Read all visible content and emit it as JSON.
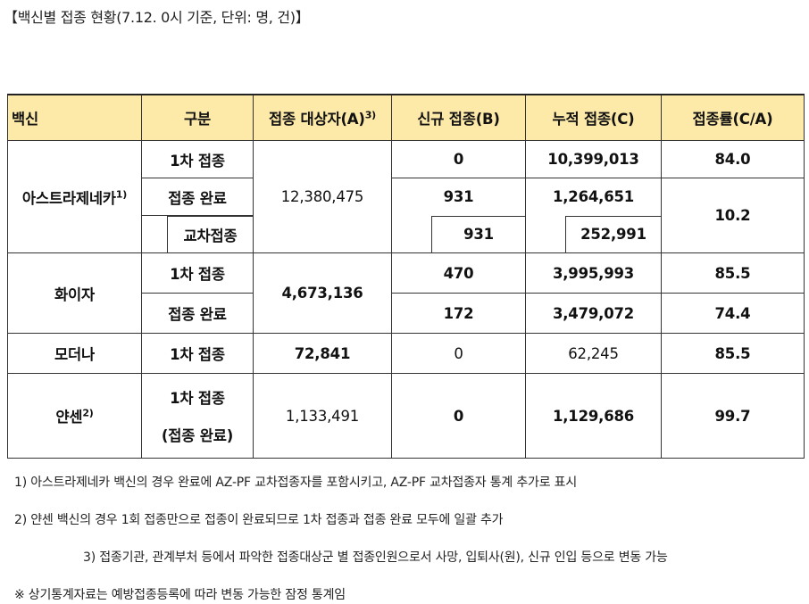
{
  "title": "【백신별 접종 현황(7.12. 0시 기준, 단위: 명, 건)】",
  "headers": {
    "vaccine": "백신",
    "category": "구분",
    "target": "접종 대상자(A)",
    "target_sup": "3)",
    "new": "신규 접종(B)",
    "cumulative": "누적 접종(C)",
    "rate": "접종률(C/A)"
  },
  "rows": {
    "az": {
      "name": "아스트라제네카",
      "name_sup": "1)",
      "target": "12,380,475",
      "first": {
        "label": "1차 접종",
        "new": "0",
        "cum": "10,399,013",
        "rate": "84.0"
      },
      "complete": {
        "label": "접종 완료",
        "new": "931",
        "cum": "1,264,651",
        "rate": "10.2"
      },
      "cross": {
        "label": "교차접종",
        "new": "931",
        "cum": "252,991"
      }
    },
    "pfizer": {
      "name": "화이자",
      "target": "4,673,136",
      "first": {
        "label": "1차 접종",
        "new": "470",
        "cum": "3,995,993",
        "rate": "85.5"
      },
      "complete": {
        "label": "접종 완료",
        "new": "172",
        "cum": "3,479,072",
        "rate": "74.4"
      }
    },
    "moderna": {
      "name": "모더나",
      "label": "1차 접종",
      "target": "72,841",
      "new": "0",
      "cum": "62,245",
      "rate": "85.5"
    },
    "janssen": {
      "name": "얀센",
      "name_sup": "2)",
      "label1": "1차 접종",
      "label2": "(접종 완료)",
      "target": "1,133,491",
      "new": "0",
      "cum": "1,129,686",
      "rate": "99.7"
    }
  },
  "notes": {
    "n1": "1)  아스트라제네카 백신의 경우 완료에 AZ-PF  교차접종자를 포함시키고,  AZ-PF  교차접종자 통계 추가로 표시",
    "n2": "2)  얀센 백신의 경우 1회 접종만으로 접종이 완료되므로 1차 접종과 접종 완료 모두에 일괄 추가",
    "n3": "3)  접종기관, 관계부처 등에서 파악한 접종대상군 별 접종인원으로서 사망, 입퇴사(원), 신규 인입 등으로 변동 가능",
    "n4": "※ 상기통계자료는 예방접종등록에 따라 변동 가능한 잠정 통계임"
  }
}
